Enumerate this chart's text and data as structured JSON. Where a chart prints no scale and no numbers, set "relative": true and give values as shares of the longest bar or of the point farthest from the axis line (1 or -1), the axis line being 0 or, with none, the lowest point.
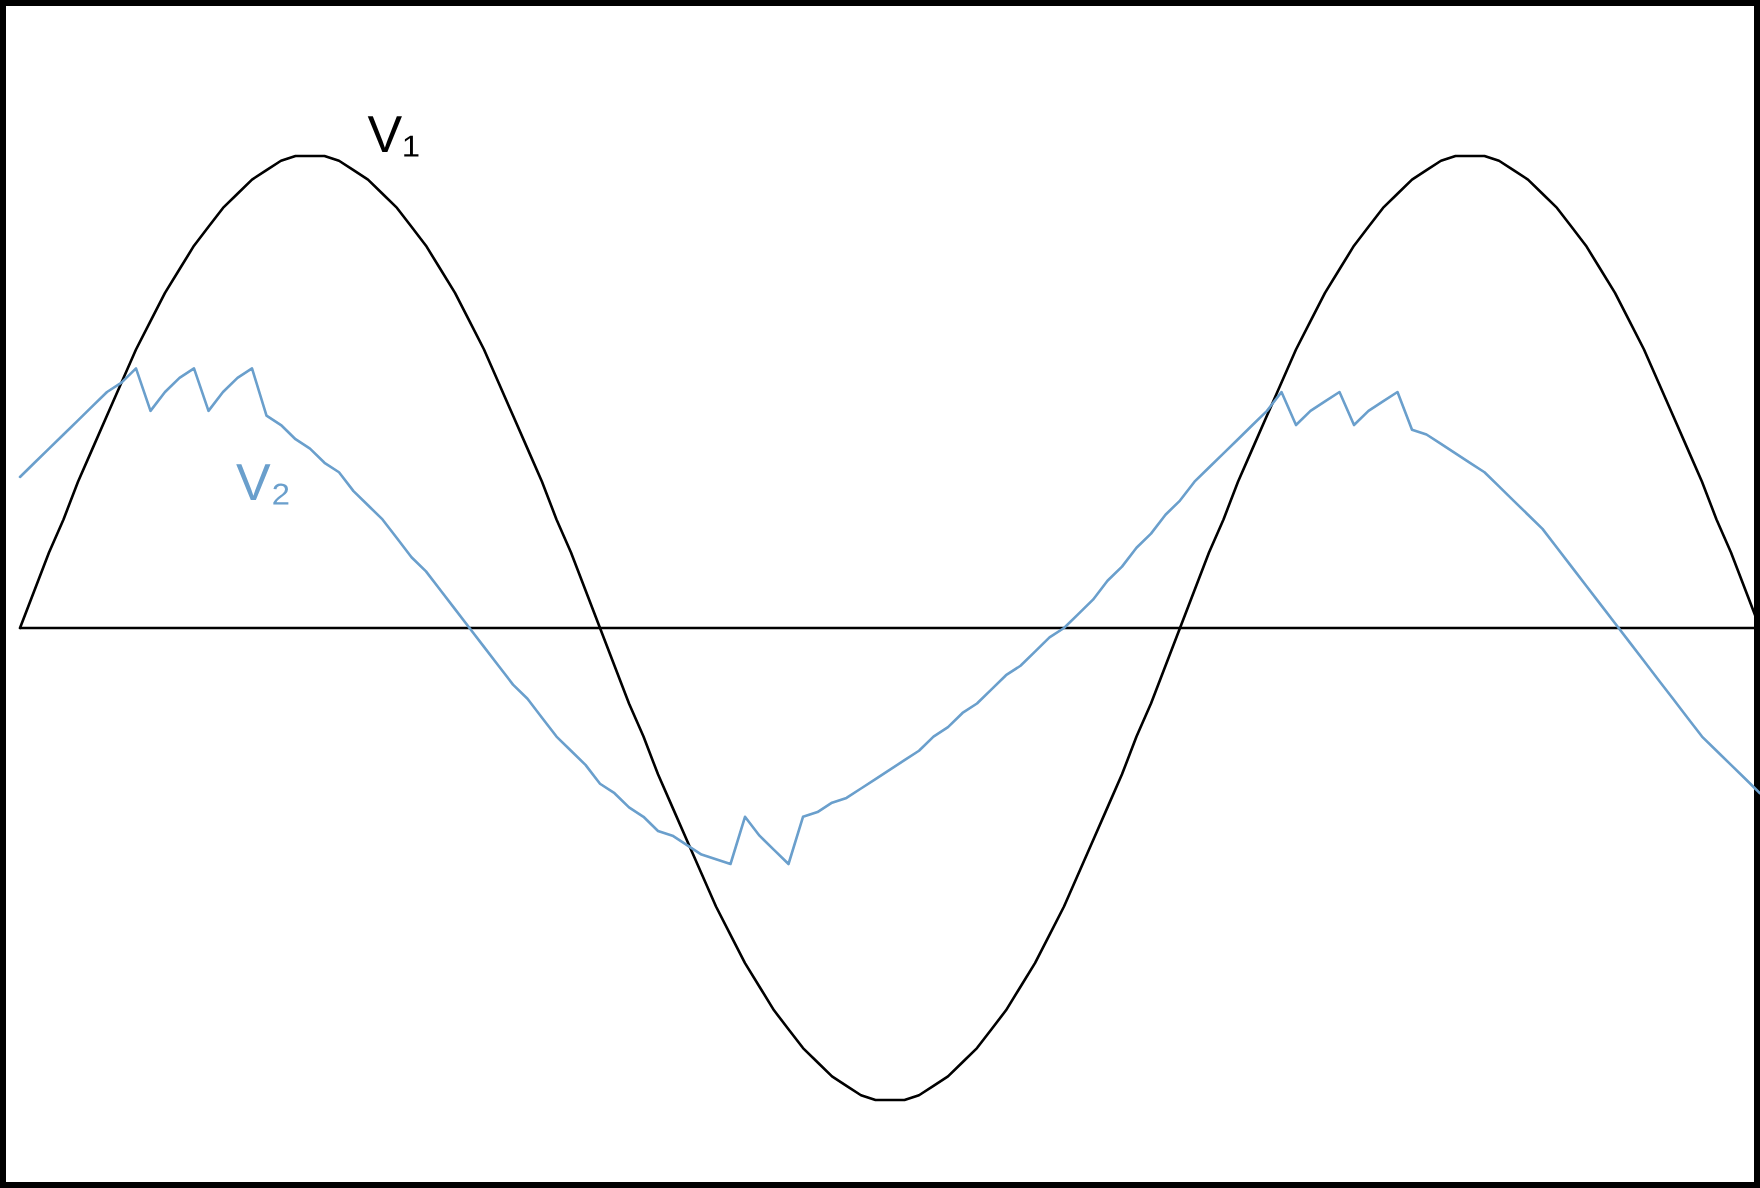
{
  "chart_data": {
    "type": "line",
    "relative": true,
    "legend": false,
    "marker": "none",
    "line_style": "solid",
    "categories": [
      null,
      null,
      null,
      null,
      null,
      null,
      null,
      null,
      null,
      null,
      null,
      null,
      null,
      null,
      null,
      null,
      null,
      null,
      null,
      null,
      null,
      null,
      null,
      null,
      null,
      null,
      null,
      null,
      null,
      null,
      null,
      null,
      null,
      null,
      null,
      null,
      null,
      null,
      null,
      null,
      null,
      null,
      null,
      null,
      null,
      null,
      null,
      null,
      null,
      null,
      null,
      null,
      null,
      null,
      null,
      null,
      null,
      null,
      null,
      null,
      null,
      null,
      null,
      null,
      null,
      null,
      null,
      null,
      null,
      null,
      null,
      null,
      null,
      null,
      null,
      null,
      null,
      null,
      null,
      null,
      null,
      null,
      null,
      null,
      null,
      null,
      null,
      null,
      null,
      null,
      null,
      null,
      null,
      null,
      null,
      null,
      null,
      null,
      null,
      null,
      null,
      null,
      null,
      null,
      null,
      null,
      null,
      null,
      null,
      null,
      null,
      null,
      null,
      null,
      null,
      null,
      null,
      null,
      null,
      null,
      null
    ],
    "series": [
      {
        "name": "V₁",
        "color": "#000000",
        "values": [
          0,
          0.08,
          0.16,
          0.23,
          0.31,
          0.38,
          0.45,
          0.52,
          0.59,
          0.65,
          0.71,
          0.76,
          0.81,
          0.85,
          0.89,
          0.92,
          0.95,
          0.97,
          0.99,
          1,
          1,
          1,
          0.99,
          0.97,
          0.95,
          0.92,
          0.89,
          0.85,
          0.81,
          0.76,
          0.71,
          0.65,
          0.59,
          0.52,
          0.45,
          0.38,
          0.31,
          0.23,
          0.16,
          0.08,
          0,
          -0.08,
          -0.16,
          -0.23,
          -0.31,
          -0.38,
          -0.45,
          -0.52,
          -0.59,
          -0.65,
          -0.71,
          -0.76,
          -0.81,
          -0.85,
          -0.89,
          -0.92,
          -0.95,
          -0.97,
          -0.99,
          -1,
          -1,
          -1,
          -0.99,
          -0.97,
          -0.95,
          -0.92,
          -0.89,
          -0.85,
          -0.81,
          -0.76,
          -0.71,
          -0.65,
          -0.59,
          -0.52,
          -0.45,
          -0.38,
          -0.31,
          -0.23,
          -0.16,
          -0.08,
          0,
          0.08,
          0.16,
          0.23,
          0.31,
          0.38,
          0.45,
          0.52,
          0.59,
          0.65,
          0.71,
          0.76,
          0.81,
          0.85,
          0.89,
          0.92,
          0.95,
          0.97,
          0.99,
          1,
          1,
          1,
          0.99,
          0.97,
          0.95,
          0.92,
          0.89,
          0.85,
          0.81,
          0.76,
          0.71,
          0.65,
          0.59,
          0.52,
          0.45,
          0.38,
          0.31,
          0.23,
          0.16,
          0.08,
          0
        ]
      },
      {
        "name": "V₂",
        "color": "#6a9fcc",
        "values": [
          0.32,
          0.35,
          0.38,
          0.41,
          0.44,
          0.47,
          0.5,
          0.52,
          0.55,
          0.46,
          0.5,
          0.53,
          0.55,
          0.46,
          0.5,
          0.53,
          0.55,
          0.45,
          0.43,
          0.4,
          0.38,
          0.35,
          0.33,
          0.29,
          0.26,
          0.23,
          0.19,
          0.15,
          0.12,
          0.08,
          0.04,
          0,
          -0.04,
          -0.08,
          -0.12,
          -0.15,
          -0.19,
          -0.23,
          -0.26,
          -0.29,
          -0.33,
          -0.35,
          -0.38,
          -0.4,
          -0.43,
          -0.44,
          -0.46,
          -0.48,
          -0.49,
          -0.5,
          -0.4,
          -0.44,
          -0.47,
          -0.5,
          -0.4,
          -0.39,
          -0.37,
          -0.36,
          -0.34,
          -0.32,
          -0.3,
          -0.28,
          -0.26,
          -0.23,
          -0.21,
          -0.18,
          -0.16,
          -0.13,
          -0.1,
          -0.08,
          -0.05,
          -0.02,
          0,
          0.03,
          0.06,
          0.1,
          0.13,
          0.17,
          0.2,
          0.24,
          0.27,
          0.31,
          0.34,
          0.37,
          0.4,
          0.43,
          0.46,
          0.5,
          0.43,
          0.46,
          0.48,
          0.5,
          0.43,
          0.46,
          0.48,
          0.5,
          0.42,
          0.41,
          0.39,
          0.37,
          0.35,
          0.33,
          0.3,
          0.27,
          0.24,
          0.21,
          0.17,
          0.13,
          0.09,
          0.05,
          0.01,
          -0.03,
          -0.07,
          -0.11,
          -0.15,
          -0.19,
          -0.23,
          -0.26,
          -0.29,
          -0.32,
          -0.35
        ]
      }
    ]
  }
}
